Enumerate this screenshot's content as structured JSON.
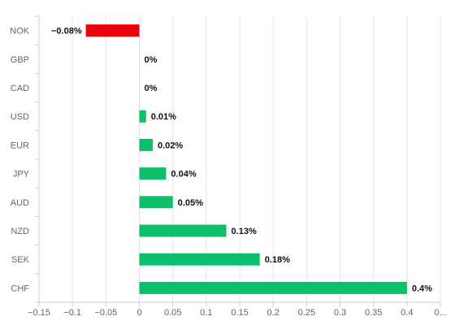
{
  "chart_data": {
    "type": "bar",
    "orientation": "horizontal",
    "title": "",
    "xlabel": "",
    "ylabel": "",
    "categories": [
      "NOK",
      "GBP",
      "CAD",
      "USD",
      "EUR",
      "JPY",
      "AUD",
      "NZD",
      "SEK",
      "CHF"
    ],
    "values": [
      -0.08,
      0,
      0,
      0.01,
      0.02,
      0.04,
      0.05,
      0.13,
      0.18,
      0.4
    ],
    "data_labels": [
      "−0.08%",
      "0%",
      "0%",
      "0.01%",
      "0.02%",
      "0.04%",
      "0.05%",
      "0.13%",
      "0.18%",
      "0.4%"
    ],
    "xlim": [
      -0.15,
      0.45
    ],
    "x_ticks": [
      -0.15,
      -0.1,
      -0.05,
      0,
      0.05,
      0.1,
      0.15,
      0.2,
      0.25,
      0.3,
      0.35,
      0.4,
      0.45
    ],
    "x_tick_labels": [
      "−0.15",
      "−0.1",
      "−0.05",
      "0",
      "0.05",
      "0.1",
      "0.15",
      "0.2",
      "0.25",
      "0.3",
      "0.35",
      "0.4",
      "0..."
    ],
    "grid": true,
    "colors": {
      "positive": "#0bbf6b",
      "negative": "#e8000b",
      "grid": "#e6e6e6",
      "axis": "#cccccc"
    }
  }
}
